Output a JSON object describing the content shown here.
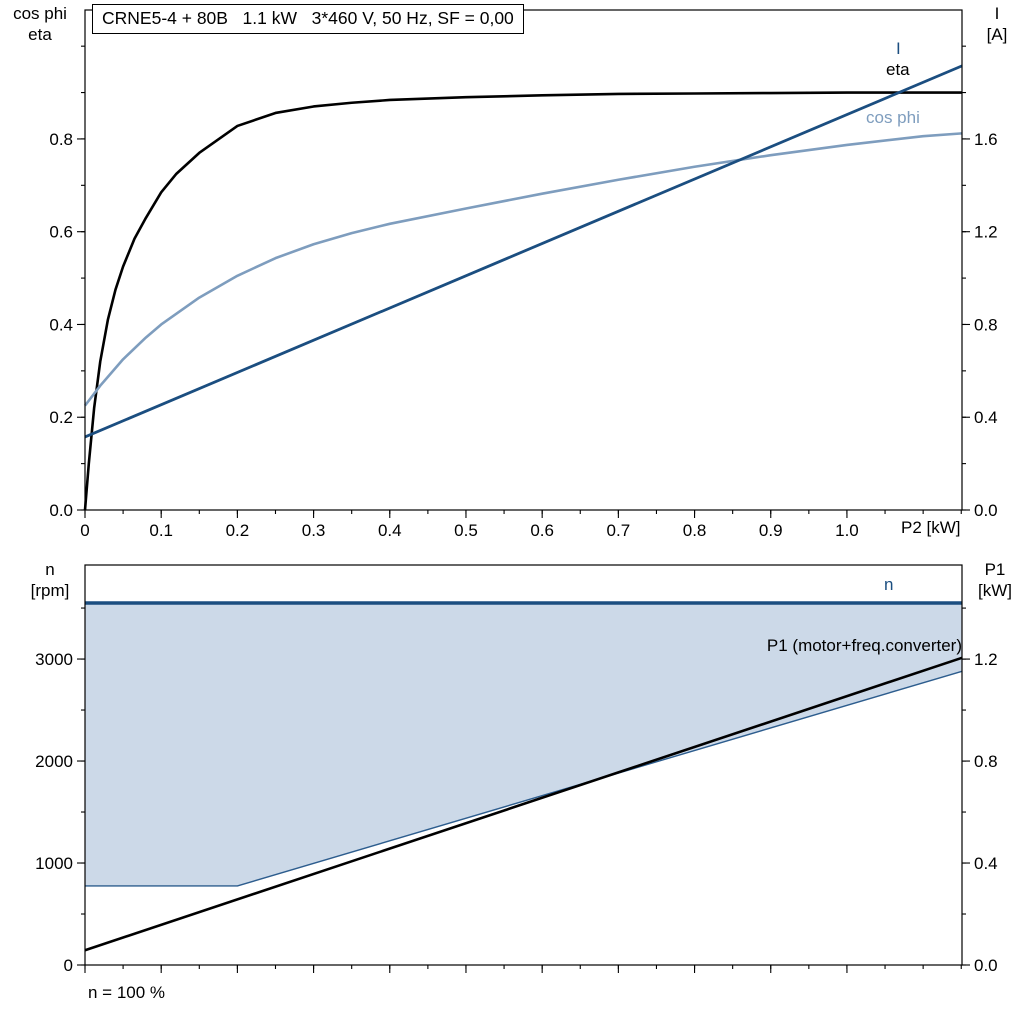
{
  "colors": {
    "dark_blue": "#1b4e80",
    "steel_blue": "#7e9dbe",
    "area_fill": "#ccd9e8",
    "black": "#000000"
  },
  "chart_data": [
    {
      "id": "top",
      "type": "line",
      "title": "CRNE5-4 + 80B   1.1 kW   3*460 V, 50 Hz, SF = 0,00",
      "x_axis": {
        "label": "P2 [kW]",
        "range": [
          0,
          1.151
        ],
        "major_ticks": [
          0,
          0.1,
          0.2,
          0.3,
          0.4,
          0.5,
          0.6,
          0.7,
          0.8,
          0.9,
          1.0
        ],
        "tick_labels": [
          "0",
          "0.1",
          "0.2",
          "0.3",
          "0.4",
          "0.5",
          "0.6",
          "0.7",
          "0.8",
          "0.9",
          "1.0"
        ],
        "minor_step": 0.05,
        "show_tick_labels": true
      },
      "left_axis": {
        "label_lines": [
          "cos phi",
          "eta"
        ],
        "range": [
          0,
          1.078
        ],
        "major_ticks": [
          0,
          0.2,
          0.4,
          0.6,
          0.8
        ],
        "tick_labels": [
          "0.0",
          "0.2",
          "0.4",
          "0.6",
          "0.8"
        ],
        "minor_step": 0.1
      },
      "right_axis": {
        "label_lines": [
          "I",
          "[A]"
        ],
        "range": [
          0,
          2.156
        ],
        "major_ticks": [
          0,
          0.4,
          0.8,
          1.2,
          1.6
        ],
        "tick_labels": [
          "0.0",
          "0.4",
          "0.8",
          "1.2",
          "1.6"
        ],
        "minor_step": 0.2
      },
      "series": [
        {
          "name": "eta",
          "label": "eta",
          "axis": "left",
          "color": "#000000",
          "width": 2.6,
          "x": [
            0,
            0.005,
            0.012,
            0.02,
            0.03,
            0.04,
            0.05,
            0.065,
            0.08,
            0.1,
            0.12,
            0.15,
            0.2,
            0.25,
            0.3,
            0.35,
            0.4,
            0.5,
            0.6,
            0.7,
            0.8,
            0.9,
            1.0,
            1.08,
            1.151
          ],
          "y": [
            0,
            0.1,
            0.22,
            0.32,
            0.41,
            0.475,
            0.525,
            0.585,
            0.63,
            0.685,
            0.725,
            0.77,
            0.828,
            0.856,
            0.87,
            0.878,
            0.884,
            0.89,
            0.894,
            0.897,
            0.898,
            0.899,
            0.9,
            0.9,
            0.9
          ]
        },
        {
          "name": "cos_phi",
          "label": "cos phi",
          "axis": "left",
          "color": "#7e9dbe",
          "width": 2.6,
          "x": [
            0,
            0.02,
            0.05,
            0.08,
            0.1,
            0.15,
            0.2,
            0.25,
            0.3,
            0.35,
            0.4,
            0.5,
            0.6,
            0.7,
            0.8,
            0.9,
            1.0,
            1.1,
            1.151
          ],
          "y": [
            0.225,
            0.268,
            0.325,
            0.372,
            0.4,
            0.458,
            0.505,
            0.543,
            0.573,
            0.597,
            0.617,
            0.65,
            0.682,
            0.712,
            0.74,
            0.765,
            0.787,
            0.806,
            0.812
          ]
        },
        {
          "name": "I",
          "label": "I",
          "axis": "right",
          "color": "#1b4e80",
          "width": 2.8,
          "x": [
            0,
            1.151
          ],
          "y": [
            0.315,
            1.915
          ]
        }
      ]
    },
    {
      "id": "bottom",
      "type": "line",
      "footnote": "n = 100 %",
      "x_axis": {
        "range": [
          0,
          1.151
        ],
        "major_ticks": [
          0,
          0.1,
          0.2,
          0.3,
          0.4,
          0.5,
          0.6,
          0.7,
          0.8,
          0.9,
          1.0
        ],
        "tick_labels": [],
        "minor_step": 0.05,
        "show_tick_labels": false
      },
      "left_axis": {
        "label_lines": [
          "n",
          "[rpm]"
        ],
        "range": [
          0,
          3922
        ],
        "major_ticks": [
          0,
          1000,
          2000,
          3000
        ],
        "tick_labels": [
          "0",
          "1000",
          "2000",
          "3000"
        ],
        "minor_step": 500
      },
      "right_axis": {
        "label_lines": [
          "P1",
          "[kW]"
        ],
        "range": [
          0,
          1.569
        ],
        "major_ticks": [
          0,
          0.4,
          0.8,
          1.2
        ],
        "tick_labels": [
          "0.0",
          "0.4",
          "0.8",
          "1.2"
        ],
        "minor_step": 0.2
      },
      "fill_between": {
        "upper": "n",
        "lower": "n_min",
        "color": "#ccd9e8"
      },
      "series": [
        {
          "name": "n",
          "label": "n",
          "axis": "left",
          "color": "#1b4e80",
          "width": 3.5,
          "x": [
            0,
            1.151
          ],
          "y": [
            3550,
            3550
          ]
        },
        {
          "name": "n_min",
          "axis": "left",
          "color": "#2d5d8e",
          "width": 1.4,
          "x": [
            0,
            0.2,
            1.151
          ],
          "y": [
            775,
            775,
            2880
          ]
        },
        {
          "name": "P1",
          "label": "P1 (motor+freq.converter)",
          "axis": "right",
          "color": "#000000",
          "width": 2.6,
          "x": [
            0,
            1.151
          ],
          "y": [
            0.058,
            1.205
          ]
        }
      ]
    }
  ]
}
